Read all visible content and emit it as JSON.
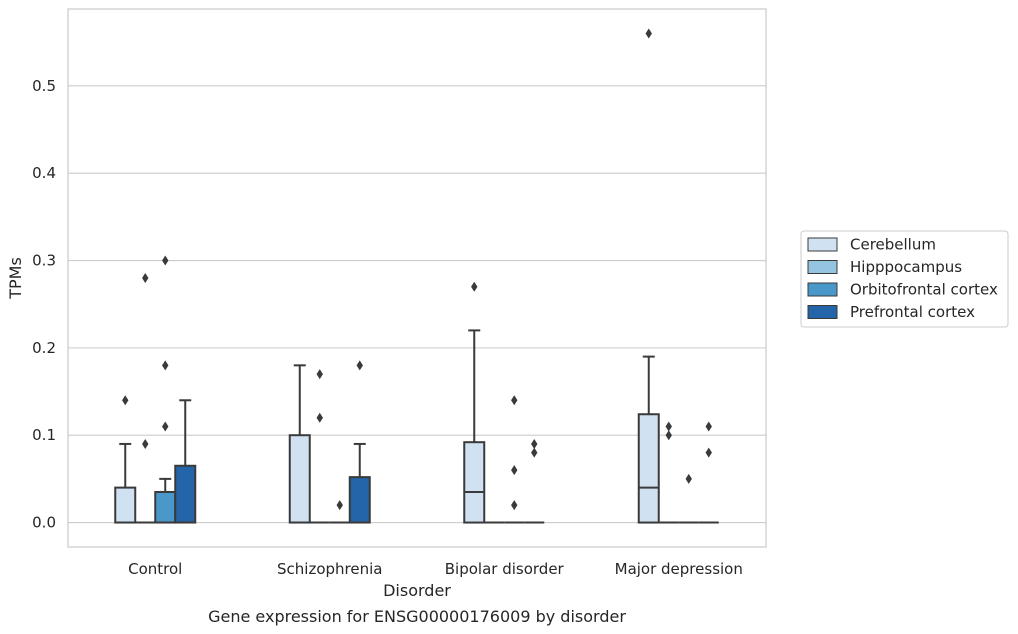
{
  "chart_data": {
    "type": "box",
    "title": "Gene expression for ENSG00000176009 by disorder",
    "xlabel": "Disorder",
    "ylabel": "TPMs",
    "ylim": [
      -0.028,
      0.588
    ],
    "yticks": [
      "0.0",
      "0.1",
      "0.2",
      "0.3",
      "0.4",
      "0.5"
    ],
    "ytick_values": [
      0.0,
      0.1,
      0.2,
      0.3,
      0.4,
      0.5
    ],
    "grid": "horizontal",
    "legend_position": "right",
    "categories": [
      "Control",
      "Schizophrenia",
      "Bipolar disorder",
      "Major depression"
    ],
    "series": [
      {
        "name": "Cerebellum",
        "color": "#d0e1f2",
        "boxes": [
          {
            "min": 0.0,
            "q1": 0.0,
            "median": 0.0,
            "q3": 0.04,
            "max": 0.09,
            "outliers": [
              0.14
            ]
          },
          {
            "min": 0.0,
            "q1": 0.0,
            "median": 0.0,
            "q3": 0.1,
            "max": 0.18,
            "outliers": []
          },
          {
            "min": 0.0,
            "q1": 0.0,
            "median": 0.035,
            "q3": 0.092,
            "max": 0.22,
            "outliers": [
              0.27
            ]
          },
          {
            "min": 0.0,
            "q1": 0.0,
            "median": 0.04,
            "q3": 0.124,
            "max": 0.19,
            "outliers": [
              0.56
            ]
          }
        ]
      },
      {
        "name": "Hipppocampus",
        "color": "#94c4df",
        "boxes": [
          {
            "min": 0.0,
            "q1": 0.0,
            "median": 0.0,
            "q3": 0.0,
            "max": 0.0,
            "outliers": [
              0.09,
              0.28
            ]
          },
          {
            "min": 0.0,
            "q1": 0.0,
            "median": 0.0,
            "q3": 0.0,
            "max": 0.0,
            "outliers": [
              0.12,
              0.17
            ]
          },
          {
            "min": 0.0,
            "q1": 0.0,
            "median": 0.0,
            "q3": 0.0,
            "max": 0.0,
            "outliers": []
          },
          {
            "min": 0.0,
            "q1": 0.0,
            "median": 0.0,
            "q3": 0.0,
            "max": 0.0,
            "outliers": [
              0.1,
              0.11
            ]
          }
        ]
      },
      {
        "name": "Orbitofrontal cortex",
        "color": "#4a98c9",
        "boxes": [
          {
            "min": 0.0,
            "q1": 0.0,
            "median": 0.0,
            "q3": 0.035,
            "max": 0.05,
            "outliers": [
              0.11,
              0.18,
              0.3
            ]
          },
          {
            "min": 0.0,
            "q1": 0.0,
            "median": 0.0,
            "q3": 0.0,
            "max": 0.0,
            "outliers": [
              0.02
            ]
          },
          {
            "min": 0.0,
            "q1": 0.0,
            "median": 0.0,
            "q3": 0.0,
            "max": 0.0,
            "outliers": [
              0.02,
              0.06,
              0.14
            ]
          },
          {
            "min": 0.0,
            "q1": 0.0,
            "median": 0.0,
            "q3": 0.0,
            "max": 0.0,
            "outliers": [
              0.05
            ]
          }
        ]
      },
      {
        "name": "Prefrontal cortex",
        "color": "#2464a8",
        "boxes": [
          {
            "min": 0.0,
            "q1": 0.0,
            "median": 0.0,
            "q3": 0.065,
            "max": 0.14,
            "outliers": []
          },
          {
            "min": 0.0,
            "q1": 0.0,
            "median": 0.0,
            "q3": 0.052,
            "max": 0.09,
            "outliers": [
              0.18
            ]
          },
          {
            "min": 0.0,
            "q1": 0.0,
            "median": 0.0,
            "q3": 0.0,
            "max": 0.0,
            "outliers": [
              0.08,
              0.09
            ]
          },
          {
            "min": 0.0,
            "q1": 0.0,
            "median": 0.0,
            "q3": 0.0,
            "max": 0.0,
            "outliers": [
              0.08,
              0.11
            ]
          }
        ]
      }
    ]
  }
}
